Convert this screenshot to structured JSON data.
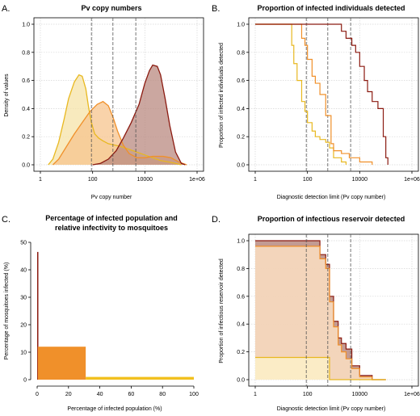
{
  "chart_data": [
    {
      "panel": "A.",
      "type": "area",
      "title": "Pv copy numbers",
      "xlabel": "Pv copy number",
      "ylabel": "Density of values",
      "x_scale": "log10",
      "xlim": [
        1,
        1000000
      ],
      "ylim": [
        0,
        1.0
      ],
      "x_ticks": [
        "1",
        "100",
        "10000",
        "1e+06"
      ],
      "y_ticks": [
        "0.0",
        "0.2",
        "0.4",
        "0.6",
        "0.8",
        "1.0"
      ],
      "grid": true,
      "vlines": [
        90,
        600,
        4500
      ],
      "series": [
        {
          "color": "#E8B820",
          "fill": "#F6E3A8",
          "x": [
            2,
            3,
            5,
            8,
            12,
            20,
            30,
            40,
            55,
            70,
            90,
            120,
            170,
            250,
            400,
            700,
            1200,
            2500,
            5000,
            10000,
            20000,
            40000,
            80000,
            150000,
            250000
          ],
          "y": [
            0.0,
            0.04,
            0.16,
            0.32,
            0.47,
            0.59,
            0.64,
            0.63,
            0.54,
            0.41,
            0.3,
            0.22,
            0.19,
            0.17,
            0.15,
            0.14,
            0.13,
            0.11,
            0.09,
            0.07,
            0.05,
            0.03,
            0.02,
            0.01,
            0.0
          ]
        },
        {
          "color": "#F0902A",
          "fill": "#F7C48E",
          "x": [
            3,
            5,
            10,
            20,
            40,
            80,
            150,
            250,
            400,
            600,
            900,
            1500,
            2500,
            5000,
            10000,
            20000,
            50000,
            100000,
            200000,
            400000
          ],
          "y": [
            0.0,
            0.04,
            0.13,
            0.22,
            0.3,
            0.38,
            0.43,
            0.45,
            0.42,
            0.34,
            0.24,
            0.14,
            0.08,
            0.05,
            0.05,
            0.06,
            0.06,
            0.05,
            0.02,
            0.0
          ]
        },
        {
          "color": "#8B1A10",
          "fill": "#B98A80",
          "x": [
            100,
            200,
            400,
            800,
            1500,
            3000,
            6000,
            10000,
            15000,
            20000,
            30000,
            40000,
            60000,
            90000,
            150000,
            250000,
            350000
          ],
          "y": [
            0.0,
            0.01,
            0.04,
            0.1,
            0.19,
            0.3,
            0.43,
            0.58,
            0.67,
            0.71,
            0.7,
            0.64,
            0.47,
            0.28,
            0.09,
            0.01,
            0.0
          ]
        }
      ]
    },
    {
      "panel": "B.",
      "type": "line",
      "title": "Proportion of infected individuals detected",
      "xlabel": "Diagnostic detection limit (Pv copy number)",
      "ylabel": "Proportion of infected individuals detected",
      "x_scale": "log10",
      "xlim": [
        1,
        1000000
      ],
      "ylim": [
        0,
        1.0
      ],
      "x_ticks": [
        "1",
        "100",
        "10000",
        "1e+06"
      ],
      "y_ticks": [
        "0.0",
        "0.2",
        "0.4",
        "0.6",
        "0.8",
        "1.0"
      ],
      "grid": true,
      "vlines": [
        90,
        600,
        4500
      ],
      "series": [
        {
          "color": "#E8B820",
          "x": [
            1,
            20,
            25,
            30,
            40,
            60,
            80,
            100,
            150,
            200,
            300,
            500,
            700,
            1000,
            2000,
            3000
          ],
          "y": [
            1.0,
            1.0,
            0.85,
            0.72,
            0.6,
            0.45,
            0.38,
            0.3,
            0.24,
            0.2,
            0.18,
            0.16,
            0.12,
            0.05,
            0.02,
            0.0
          ]
        },
        {
          "color": "#F0902A",
          "x": [
            1,
            40,
            60,
            80,
            100,
            150,
            200,
            300,
            500,
            800,
            1000,
            2000,
            4000,
            10000,
            30000
          ],
          "y": [
            1.0,
            1.0,
            0.9,
            0.85,
            0.75,
            0.63,
            0.58,
            0.5,
            0.35,
            0.15,
            0.1,
            0.08,
            0.05,
            0.02,
            0.0
          ]
        },
        {
          "color": "#8B1A10",
          "x": [
            1,
            500,
            1000,
            2000,
            3000,
            5000,
            7000,
            10000,
            15000,
            20000,
            30000,
            50000,
            80000,
            100000,
            120000
          ],
          "y": [
            1.0,
            1.0,
            1.0,
            0.95,
            0.9,
            0.85,
            0.8,
            0.7,
            0.6,
            0.52,
            0.45,
            0.4,
            0.2,
            0.05,
            0.0
          ]
        }
      ]
    },
    {
      "panel": "C.",
      "type": "bar",
      "title": "Percentage of infected population and relative infectivity to mosquitoes",
      "xlabel": "Percentage of infected population (%)",
      "ylabel": "Percentage of mosquitoes infected (%)",
      "xlim": [
        0,
        100
      ],
      "ylim": [
        0,
        50
      ],
      "x_ticks": [
        "0",
        "20",
        "40",
        "60",
        "80",
        "100"
      ],
      "y_ticks": [
        "0",
        "10",
        "20",
        "30",
        "40",
        "50"
      ],
      "grid": false,
      "bars": [
        {
          "x_start": 0.0,
          "x_end": 0.4,
          "y": 46.5,
          "color": "#8B1A10"
        },
        {
          "x_start": 0.4,
          "x_end": 31.0,
          "y": 12.0,
          "color": "#F0902A"
        },
        {
          "x_start": 31.0,
          "x_end": 100.0,
          "y": 1.0,
          "color": "#F2C01E"
        }
      ]
    },
    {
      "panel": "D.",
      "type": "area",
      "title": "Proportion of infectious reservoir detected",
      "xlabel": "Diagnostic detection limit (Pv copy number)",
      "ylabel": "Proportion of infectious reservoir detected",
      "x_scale": "log10",
      "xlim": [
        1,
        1000000
      ],
      "ylim": [
        0,
        1.0
      ],
      "x_ticks": [
        "1",
        "100",
        "10000",
        "1e+06"
      ],
      "y_ticks": [
        "0.0",
        "0.2",
        "0.4",
        "0.6",
        "0.8",
        "1.0"
      ],
      "grid": true,
      "vlines": [
        90,
        600,
        4500
      ],
      "series": [
        {
          "color": "#8B1A10",
          "fill": "#B98A80",
          "x": [
            1,
            300,
            300,
            500,
            500,
            700,
            700,
            1000,
            1000,
            1500,
            1500,
            2000,
            2000,
            3000,
            3000,
            5000,
            5000,
            10000,
            10000,
            30000,
            30000,
            100000
          ],
          "y": [
            1.0,
            1.0,
            0.9,
            0.9,
            0.83,
            0.83,
            0.6,
            0.6,
            0.42,
            0.42,
            0.3,
            0.3,
            0.26,
            0.26,
            0.22,
            0.22,
            0.1,
            0.1,
            0.03,
            0.03,
            0.0,
            0.0
          ]
        },
        {
          "color": "#F0902A",
          "fill": "#FBDFC2",
          "x": [
            1,
            300,
            300,
            500,
            500,
            700,
            700,
            1000,
            1000,
            1500,
            1500,
            2000,
            2000,
            3000,
            3000,
            5000,
            5000,
            10000,
            10000,
            30000,
            30000,
            100000
          ],
          "y": [
            0.96,
            0.96,
            0.87,
            0.87,
            0.8,
            0.8,
            0.56,
            0.56,
            0.38,
            0.38,
            0.25,
            0.25,
            0.2,
            0.2,
            0.15,
            0.15,
            0.08,
            0.08,
            0.02,
            0.02,
            0.0,
            0.0
          ]
        },
        {
          "color": "#E8B820",
          "fill": "#FBF0C8",
          "x": [
            1,
            700,
            700,
            100000
          ],
          "y": [
            0.16,
            0.16,
            0.0,
            0.0
          ]
        }
      ]
    }
  ]
}
